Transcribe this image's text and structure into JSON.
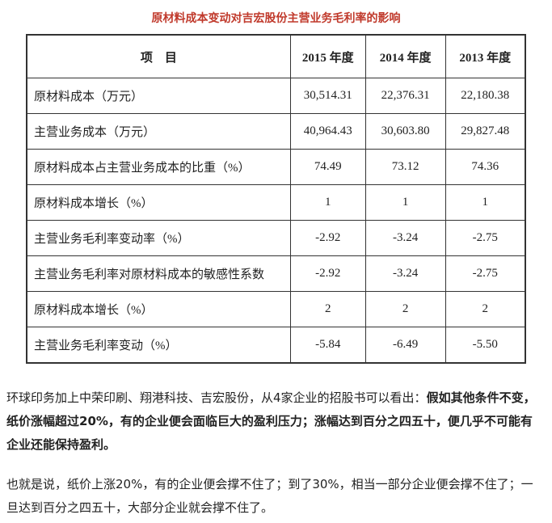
{
  "title": "原材料成本变动对吉宏股份主营业务毛利率的影响",
  "table": {
    "header": [
      "项　目",
      "2015 年度",
      "2014 年度",
      "2013 年度"
    ],
    "rows": [
      [
        "原材料成本（万元）",
        "30,514.31",
        "22,376.31",
        "22,180.38"
      ],
      [
        "主营业务成本（万元）",
        "40,964.43",
        "30,603.80",
        "29,827.48"
      ],
      [
        "原材料成本占主营业务成本的比重（%）",
        "74.49",
        "73.12",
        "74.36"
      ],
      [
        "原材料成本增长（%）",
        "1",
        "1",
        "1"
      ],
      [
        "主营业务毛利率变动率（%）",
        "-2.92",
        "-3.24",
        "-2.75"
      ],
      [
        "主营业务毛利率对原材料成本的敏感性系数",
        "-2.92",
        "-3.24",
        "-2.75"
      ],
      [
        "原材料成本增长（%）",
        "2",
        "2",
        "2"
      ],
      [
        "主营业务毛利率变动（%）",
        "-5.84",
        "-6.49",
        "-5.50"
      ]
    ]
  },
  "paragraphs": [
    [
      {
        "text": "环球印务加上中荣印刷、翔港科技、吉宏股份，从4家企业的招股书可以看出：",
        "bold": false
      },
      {
        "text": "假如其他条件不变，纸价涨幅超过20%，有的企业便会面临巨大的盈利压力；涨幅达到百分之四五十，便几乎不可能有企业还能保持盈利。",
        "bold": true
      }
    ],
    [
      {
        "text": "也就是说，纸价上涨20%，有的企业便会撑不住了；到了30%，相当一部分企业便会撑不住了；一旦达到百分之四五十，大部分企业就会撑不住了。",
        "bold": false
      }
    ]
  ]
}
